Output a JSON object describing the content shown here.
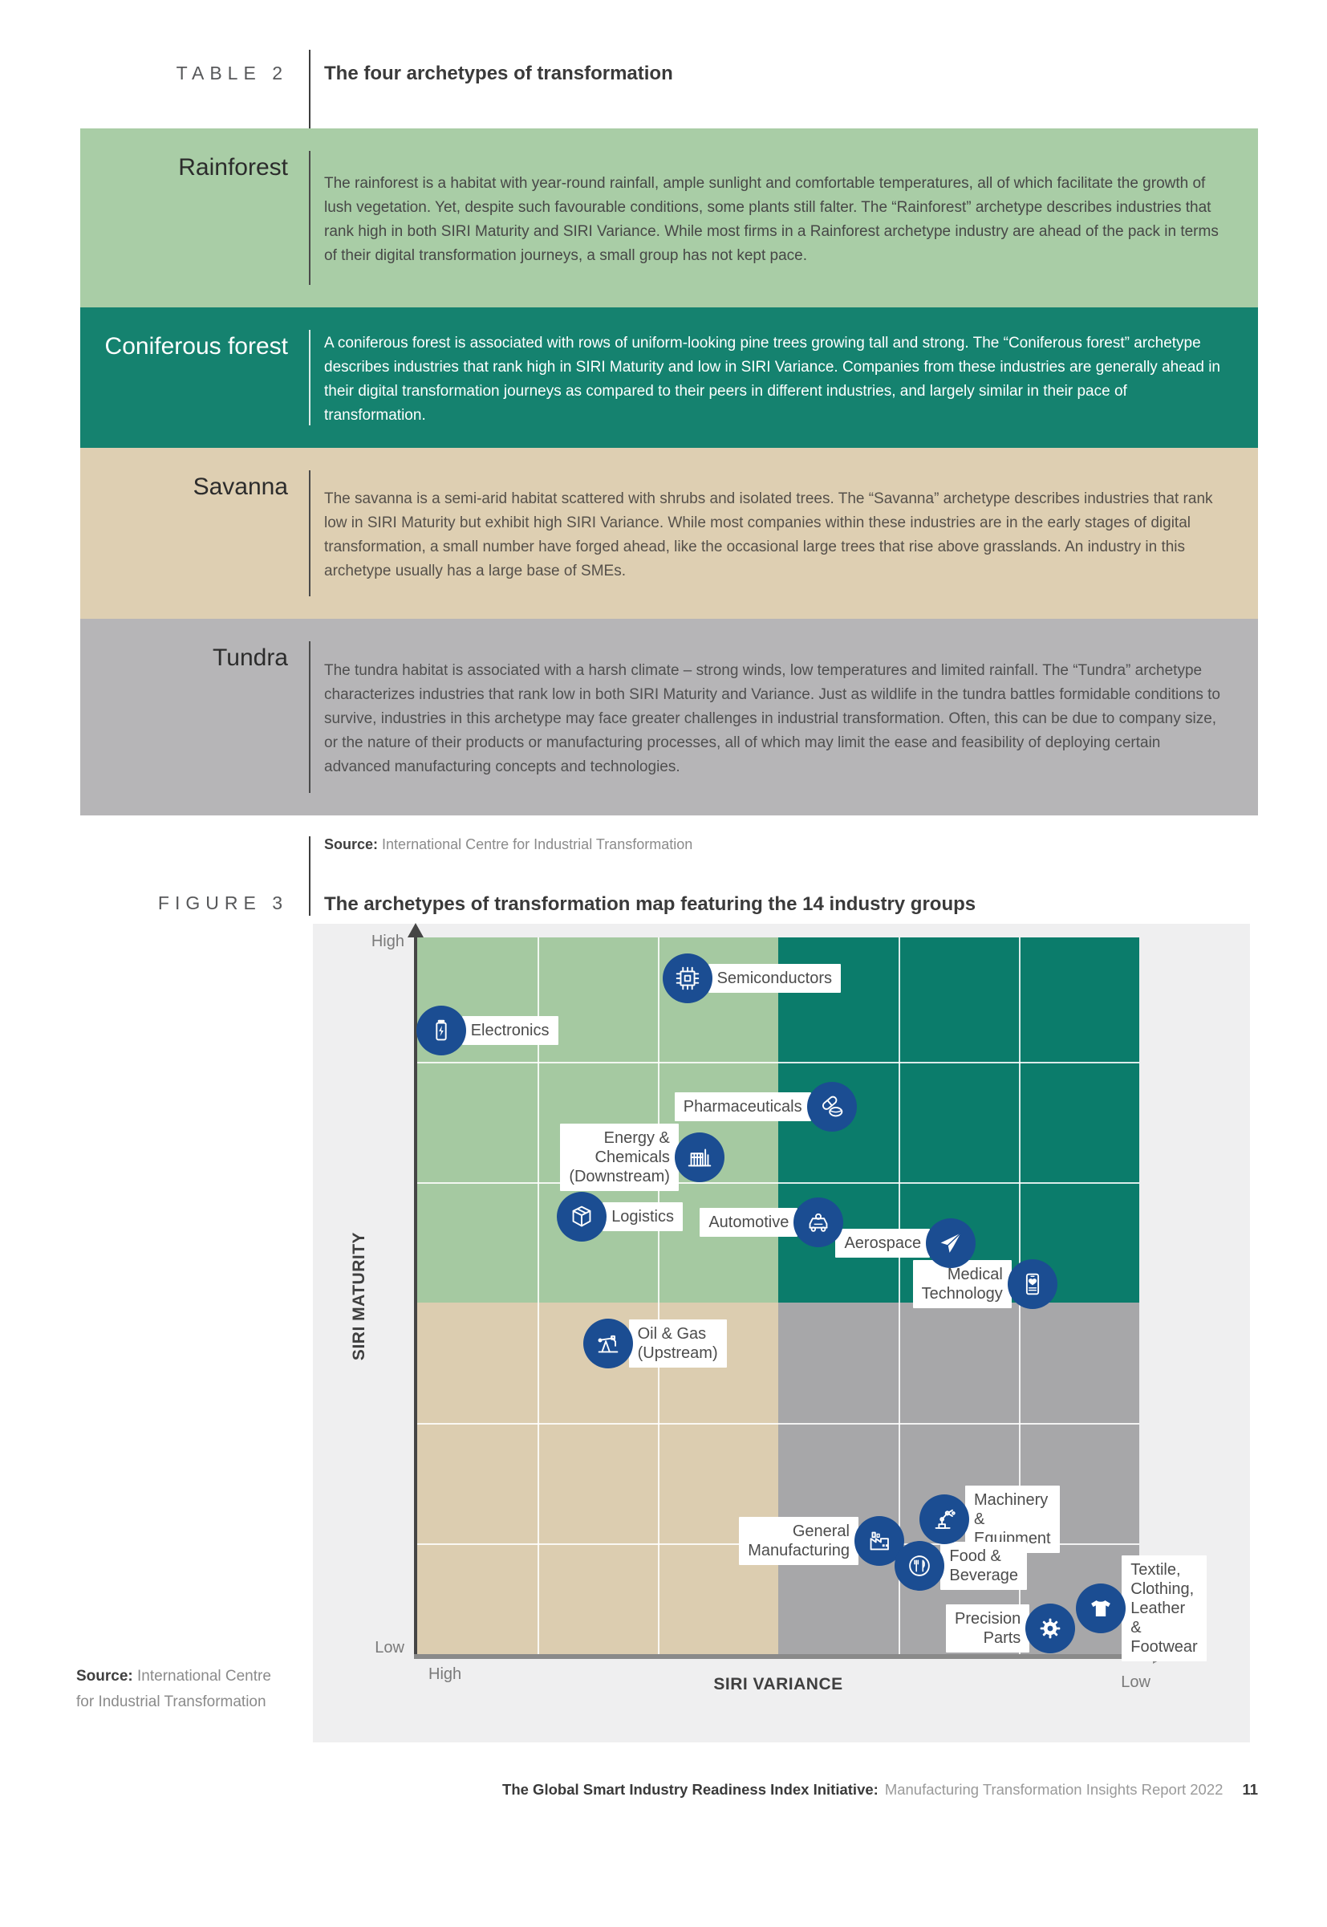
{
  "table2": {
    "tag": "TABLE 2",
    "title": "The four archetypes of transformation",
    "rows": [
      {
        "name": "Rainforest",
        "description": "The rainforest is a habitat with year-round rainfall, ample sunlight and comfortable temperatures, all of which facilitate the growth of lush vegetation. Yet, despite such favourable conditions, some plants still falter. The “Rainforest” archetype describes industries that rank high in both SIRI Maturity and SIRI Variance. While most firms in a Rainforest archetype industry are ahead of the pack in terms of their digital transformation journeys, a small group has not kept pace.",
        "bg": "#a9cda6",
        "label_color": "#2c2c2c",
        "text_color": "#474747",
        "divider_color": "#4a4a4a"
      },
      {
        "name": "Coniferous forest",
        "description": "A coniferous forest is associated with rows of uniform-looking pine trees growing tall and strong. The “Coniferous forest” archetype describes industries that rank high in SIRI Maturity and low in SIRI Variance. Companies from these industries are generally ahead in their digital transformation journeys as compared to their peers in different industries, and largely similar in their pace of transformation.",
        "bg": "#15826f",
        "label_color": "#ffffff",
        "text_color": "#ffffff",
        "divider_color": "#dcebe7"
      },
      {
        "name": "Savanna",
        "description": "The savanna is a semi-arid habitat scattered with shrubs and isolated trees. The “Savanna” archetype describes industries that rank low in SIRI Maturity but exhibit high SIRI Variance. While most companies within these industries are in the early stages of digital transformation, a small number have forged ahead, like the occasional large trees that rise above grasslands. An industry in this archetype usually has a large base of SMEs.",
        "bg": "#decfb2",
        "label_color": "#2c2c2c",
        "text_color": "#55504a",
        "divider_color": "#4a4a4a"
      },
      {
        "name": "Tundra",
        "description": "The tundra habitat is associated with a harsh climate – strong winds, low temperatures and limited rainfall. The “Tundra” archetype characterizes industries that rank low in both SIRI Maturity and Variance. Just as wildlife in the tundra battles formidable conditions to survive, industries in this archetype may face greater challenges in industrial transformation. Often, this can be due to company size, or the nature of their products or manufacturing processes, all of which may limit the ease and feasibility of deploying certain advanced manufacturing concepts and technologies.",
        "bg": "#b6b5b7",
        "label_color": "#2c2c2c",
        "text_color": "#4f4f4f",
        "divider_color": "#4a4a4a"
      }
    ],
    "source_label": "Source:",
    "source_text": "International Centre for Industrial Transformation"
  },
  "figure3": {
    "tag": "FIGURE 3",
    "title": "The archetypes of transformation map featuring the 14 industry groups",
    "source": {
      "label": "Source:",
      "line1": "International Centre",
      "line2": "for Industrial Transformation"
    },
    "chart_data": {
      "type": "scatter",
      "x_axis": {
        "title": "SIRI VARIANCE",
        "left_label": "High",
        "right_label": "Low"
      },
      "y_axis": {
        "title": "SIRI MATURITY",
        "top_label": "High",
        "bottom_label": "Low"
      },
      "grid": {
        "columns": 6,
        "rows": 6,
        "line_color": "#ffffff"
      },
      "marker_color": "#1b4d92",
      "label_box_color": "#ffffff",
      "quadrants": [
        {
          "name": "Rainforest",
          "position": "top-left",
          "color": "#a5c9a1"
        },
        {
          "name": "Coniferous forest",
          "position": "top-right",
          "color": "#0b7c6b"
        },
        {
          "name": "Savanna",
          "position": "bottom-left",
          "color": "#dccdb0"
        },
        {
          "name": "Tundra",
          "position": "bottom-right",
          "color": "#a7a7a9"
        }
      ],
      "points": [
        {
          "label": "Semiconductors",
          "icon": "chip-icon",
          "x_pct": 37.4,
          "y_pct": 5.7,
          "label_side": "right"
        },
        {
          "label": "Electronics",
          "icon": "battery-icon",
          "x_pct": 3.3,
          "y_pct": 13.0,
          "label_side": "right"
        },
        {
          "label": "Pharmaceuticals",
          "icon": "pills-icon",
          "x_pct": 57.4,
          "y_pct": 23.6,
          "label_side": "left"
        },
        {
          "label": "Energy & Chemicals (Downstream)",
          "icon": "refinery-icon",
          "x_pct": 39.1,
          "y_pct": 30.7,
          "label_side": "left"
        },
        {
          "label": "Logistics",
          "icon": "package-icon",
          "x_pct": 22.8,
          "y_pct": 39.0,
          "label_side": "right"
        },
        {
          "label": "Automotive",
          "icon": "car-icon",
          "x_pct": 55.6,
          "y_pct": 39.8,
          "label_side": "left"
        },
        {
          "label": "Aerospace",
          "icon": "airplane-icon",
          "x_pct": 73.9,
          "y_pct": 42.7,
          "label_side": "left"
        },
        {
          "label": "Medical Technology",
          "icon": "medical-device-icon",
          "x_pct": 85.2,
          "y_pct": 48.4,
          "label_side": "left"
        },
        {
          "label": "Oil & Gas (Upstream)",
          "icon": "oil-pump-icon",
          "x_pct": 26.4,
          "y_pct": 56.7,
          "label_side": "right"
        },
        {
          "label": "Machinery & Equipment",
          "icon": "robot-arm-icon",
          "x_pct": 73.0,
          "y_pct": 81.2,
          "label_side": "right"
        },
        {
          "label": "General Manufacturing",
          "icon": "factory-icon",
          "x_pct": 64.0,
          "y_pct": 84.2,
          "label_side": "left"
        },
        {
          "label": "Food & Beverage",
          "icon": "cutlery-icon",
          "x_pct": 69.6,
          "y_pct": 87.7,
          "label_side": "right"
        },
        {
          "label": "Textile, Clothing,\nLeather & Footwear",
          "icon": "tshirt-icon",
          "x_pct": 94.7,
          "y_pct": 93.6,
          "label_side": "right"
        },
        {
          "label": "Precision Parts",
          "icon": "gear-icon",
          "x_pct": 87.7,
          "y_pct": 96.4,
          "label_side": "left"
        }
      ]
    }
  },
  "footer": {
    "bold": "The Global Smart Industry Readiness Index Initiative:",
    "regular": "Manufacturing Transformation Insights Report 2022",
    "page_number": "11"
  }
}
